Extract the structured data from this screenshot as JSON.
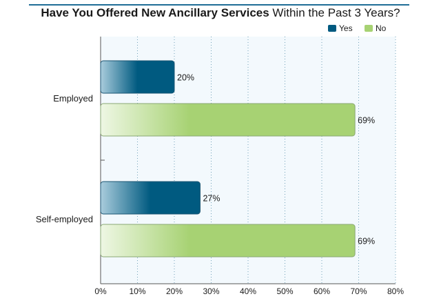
{
  "chart_data": {
    "type": "bar",
    "orientation": "horizontal",
    "title": {
      "bold": "Have You Offered New Ancillary Services",
      "regular": " Within the Past 3 Years?"
    },
    "categories": [
      "Employed",
      "Self-employed"
    ],
    "series": [
      {
        "name": "Yes",
        "values": [
          20,
          27
        ],
        "color": "#005a80"
      },
      {
        "name": "No",
        "values": [
          69,
          69
        ],
        "color": "#a7d273"
      }
    ],
    "value_labels": [
      [
        "20%",
        "27%"
      ],
      [
        "69%",
        "69%"
      ]
    ],
    "xlim": [
      0,
      80
    ],
    "x_ticks": [
      "0%",
      "10%",
      "20%",
      "30%",
      "40%",
      "50%",
      "60%",
      "70%",
      "80%"
    ],
    "grid": true,
    "legend": "top-right",
    "plot_background": "#f3f9fd"
  }
}
